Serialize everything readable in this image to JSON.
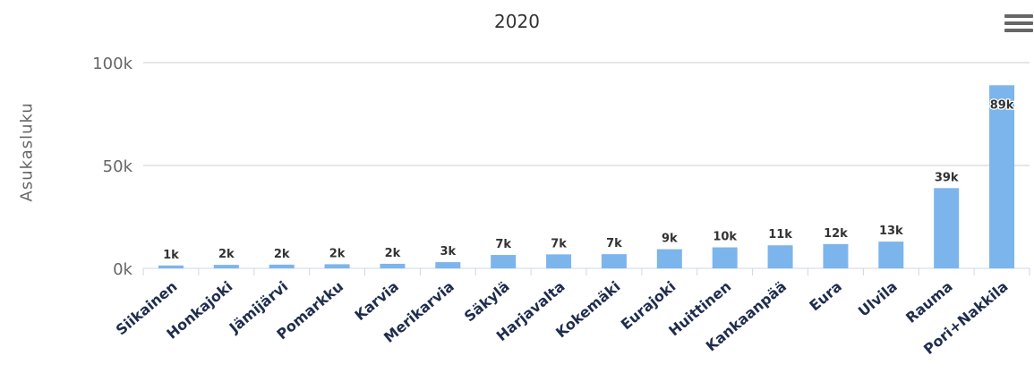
{
  "title": "2020",
  "menu_icon": "hamburger-menu-icon",
  "chart_data": {
    "type": "bar",
    "title": "2020",
    "xlabel": "",
    "ylabel": "Asukasluku",
    "ylim": [
      0,
      100000
    ],
    "yticks": [
      "0k",
      "50k",
      "100k"
    ],
    "ytick_values": [
      0,
      50000,
      100000
    ],
    "grid": true,
    "color": "#7cb5ec",
    "categories": [
      "Siikainen",
      "Honkajoki",
      "Jämijärvi",
      "Pomarkku",
      "Karvia",
      "Merikarvia",
      "Säkylä",
      "Harjavalta",
      "Kokemäki",
      "Eurajoki",
      "Huittinen",
      "Kankaanpää",
      "Eura",
      "Ulvila",
      "Rauma",
      "Pori+Nakkila"
    ],
    "values": [
      1400,
      1700,
      1800,
      2000,
      2200,
      3000,
      6500,
      6800,
      6900,
      9300,
      10200,
      11200,
      11800,
      13000,
      39000,
      89000
    ],
    "labels": [
      "1k",
      "2k",
      "2k",
      "2k",
      "2k",
      "3k",
      "7k",
      "7k",
      "7k",
      "9k",
      "10k",
      "11k",
      "12k",
      "13k",
      "39k",
      "89k"
    ]
  }
}
